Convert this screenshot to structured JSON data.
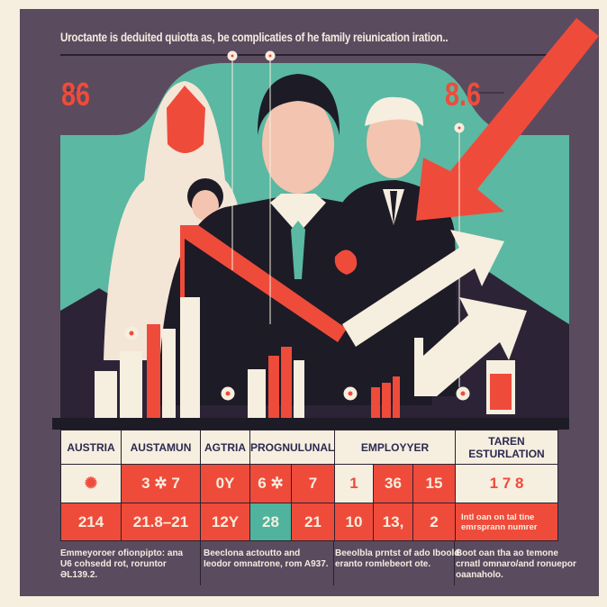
{
  "title": "Uroctante is deduited quiotta as, be complicaties of he family reiunication iration..",
  "stats": {
    "left": "86",
    "right": "8.6"
  },
  "colors": {
    "background": "#f6eedf",
    "panel": "#5b4b5f",
    "teal": "#5bb8a2",
    "accent": "#ef4b3b",
    "dark": "#1d1b26"
  },
  "table": {
    "headers": [
      "AUSTRIA",
      "AUSTAMUN",
      "AGTRIA",
      "PROGNULUNAL",
      "EMPLOYYER",
      "TAREN ESTURLATION"
    ],
    "row2": [
      "3",
      "7",
      "0Y",
      "6",
      "7",
      "1",
      "36",
      "15",
      "1   7    8"
    ],
    "row3": [
      "214",
      "21.8–21",
      "12Y",
      "28",
      "21",
      "10",
      "13,",
      "2",
      "Intl oan on tal tine emrsprann numrer"
    ]
  },
  "notes": [
    "Emmeyoroer ofionpipto: ana U6 cohsedd rot, roruntor ƏL139.2.",
    "Beeclona actoutto and Ieodor omnatrone, rom A937.",
    "Beeolbla prntst of ado Iboold eranto romlebeort ote.",
    "Boot oan tha ao temone crnatl omnaro/and ronuepor oaanaholo."
  ]
}
